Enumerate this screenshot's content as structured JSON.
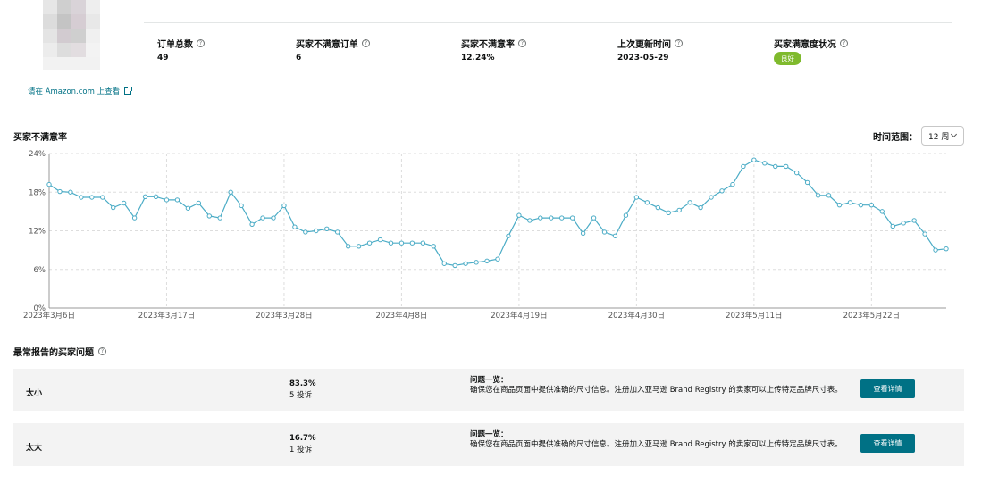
{
  "product": {
    "view_on_amazon": "请在 Amazon.com 上查看"
  },
  "metrics": [
    {
      "label": "订单总数",
      "value": "49"
    },
    {
      "label": "买家不满意订单",
      "value": "6"
    },
    {
      "label": "买家不满意率",
      "value": "12.24%"
    },
    {
      "label": "上次更新时间",
      "value": "2023-05-29"
    },
    {
      "label": "买家满意度状况",
      "badge": "良好",
      "badge_color": "#7fba2d"
    }
  ],
  "chart_section": {
    "title": "买家不满意率",
    "range_label": "时间范围：",
    "range_value": "12 周"
  },
  "chart_data": {
    "type": "line",
    "title": "",
    "ylim": [
      0,
      24
    ],
    "y_ticks": [
      "0%",
      "6%",
      "12%",
      "18%",
      "24%"
    ],
    "x_ticks": [
      "2023年3月6日",
      "2023年3月17日",
      "2023年3月28日",
      "2023年4月8日",
      "2023年4月19日",
      "2023年4月30日",
      "2023年5月11日",
      "2023年5月22日"
    ],
    "x_start": "2023-03-06",
    "line_color": "#4bacc6",
    "grid": true,
    "series": [
      {
        "values": [
          19.2,
          18.1,
          18.0,
          17.2,
          17.2,
          17.2,
          15.6,
          16.3,
          14.0,
          17.3,
          17.3,
          16.8,
          16.8,
          15.5,
          16.3,
          14.3,
          14.0,
          18.0,
          15.9,
          13.0,
          14.0,
          14.0,
          15.9,
          12.6,
          11.8,
          12.0,
          12.3,
          11.8,
          9.6,
          9.6,
          10.1,
          10.6,
          10.1,
          10.1,
          10.1,
          10.1,
          9.6,
          6.9,
          6.6,
          6.9,
          7.1,
          7.3,
          7.6,
          11.2,
          14.4,
          13.6,
          14.0,
          14.0,
          14.0,
          14.0,
          11.6,
          14.0,
          11.8,
          11.2,
          14.4,
          17.2,
          16.4,
          15.6,
          14.8,
          15.2,
          16.4,
          15.6,
          17.2,
          18.2,
          19.2,
          22.0,
          23.0,
          22.5,
          22.0,
          22.0,
          21.0,
          19.5,
          17.5,
          17.5,
          16.0,
          16.4,
          16.0,
          16.0,
          15.0,
          12.7,
          13.2,
          13.6,
          11.5,
          9.0,
          9.2
        ]
      }
    ]
  },
  "issues_section": {
    "title": "最常报告的买家问题"
  },
  "issues": [
    {
      "name": "太小",
      "percent": "83.3%",
      "count": "5 投诉",
      "head": "问题一览：",
      "desc": "确保您在商品页面中提供准确的尺寸信息。注册加入亚马逊 Brand Registry 的卖家可以上传特定品牌尺寸表。",
      "button": "查看详情"
    },
    {
      "name": "太大",
      "percent": "16.7%",
      "count": "1 投诉",
      "head": "问题一览：",
      "desc": "确保您在商品页面中提供准确的尺寸信息。注册加入亚马逊 Brand Registry 的卖家可以上传特定品牌尺寸表。",
      "button": "查看详情"
    }
  ]
}
